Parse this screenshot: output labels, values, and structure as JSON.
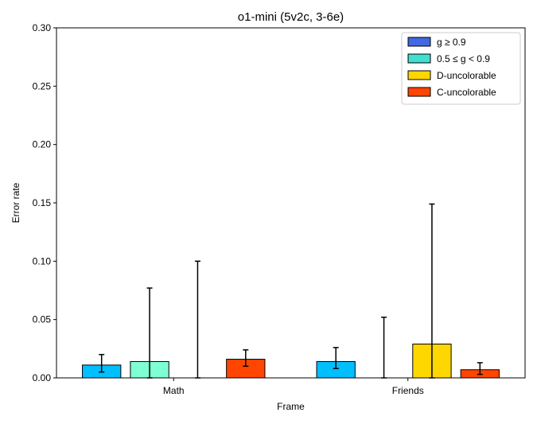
{
  "chart_data": {
    "type": "bar",
    "title": "o1-mini (5v2c, 3-6e)",
    "xlabel": "Frame",
    "ylabel": "Error rate",
    "ylim": [
      0,
      0.3
    ],
    "yticks": [
      "0.00",
      "0.05",
      "0.10",
      "0.15",
      "0.20",
      "0.25",
      "0.30"
    ],
    "grid": false,
    "legend_position": "top-right",
    "categories": [
      "Math",
      "Friends"
    ],
    "series": [
      {
        "name": "g ≥ 0.9",
        "legend_color": "#4169e1",
        "bar_colors": [
          "#00bfff",
          "#00bfff"
        ],
        "values": [
          0.011,
          0.014
        ],
        "error_low": [
          0.005,
          0.008
        ],
        "error_high": [
          0.02,
          0.026
        ]
      },
      {
        "name": "0.5 ≤ g < 0.9",
        "legend_color": "#40e0d0",
        "bar_colors": [
          "#7fffd4",
          "#7fffd4"
        ],
        "values": [
          0.014,
          0.0
        ],
        "error_low": [
          0.0,
          0.0
        ],
        "error_high": [
          0.077,
          0.052
        ]
      },
      {
        "name": "D-uncolorable",
        "legend_color": "#ffd700",
        "bar_colors": [
          "#ffd700",
          "#ffd700"
        ],
        "values": [
          0.0,
          0.029
        ],
        "error_low": [
          0.0,
          0.0
        ],
        "error_high": [
          0.1,
          0.149
        ]
      },
      {
        "name": "C-uncolorable",
        "legend_color": "#ff4500",
        "bar_colors": [
          "#ff4500",
          "#ff4500"
        ],
        "values": [
          0.016,
          0.007
        ],
        "error_low": [
          0.01,
          0.003
        ],
        "error_high": [
          0.024,
          0.013
        ]
      }
    ]
  }
}
